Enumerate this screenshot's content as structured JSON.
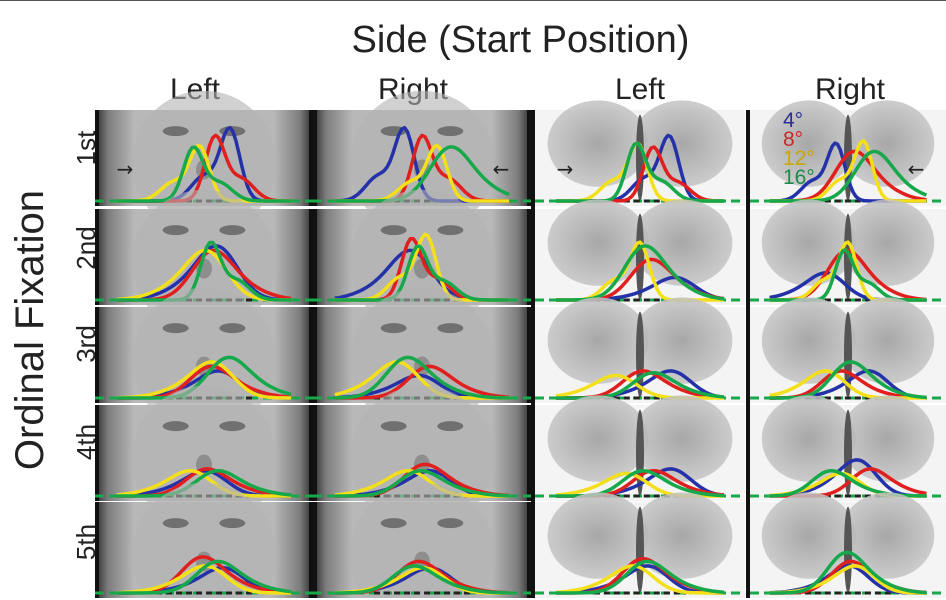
{
  "figure": {
    "super_title": "Side (Start Position)",
    "column_titles": [
      "Left",
      "Right",
      "Left",
      "Right"
    ],
    "row_axis_title": "Ordinal Fixation",
    "row_labels": [
      "1st",
      "2nd",
      "3rd",
      "4th",
      "5th"
    ],
    "stimuli": [
      "face",
      "face",
      "butterfly",
      "butterfly"
    ],
    "start_arrows": [
      "→",
      "←",
      "→",
      "←"
    ],
    "legend": [
      {
        "label": "4°",
        "color": "#2b2f93"
      },
      {
        "label": "8°",
        "color": "#c8282a"
      },
      {
        "label": "12°",
        "color": "#c9a800"
      },
      {
        "label": "16°",
        "color": "#1f8a4c"
      }
    ]
  },
  "chart_data": {
    "type": "line",
    "title": "",
    "x_axis": "horizontal position across stimulus",
    "series_names": [
      "4°",
      "8°",
      "12°",
      "16°"
    ],
    "colors": {
      "4°": "#2431a8",
      "8°": "#e0201f",
      "12°": "#f3e01b",
      "16°": "#16a84a"
    },
    "panels": [
      {
        "row": "1st",
        "column": "Left",
        "stimulus": "face",
        "peaks": {
          "4°": [
            0.62,
            0.95
          ],
          "8°": [
            0.55,
            0.85
          ],
          "12°": [
            0.48,
            0.72
          ],
          "16°": [
            0.45,
            0.7
          ]
        }
      },
      {
        "row": "1st",
        "column": "Right",
        "stimulus": "face",
        "peaks": {
          "4°": [
            0.42,
            0.95
          ],
          "8°": [
            0.5,
            0.85
          ],
          "12°": [
            0.57,
            0.72
          ],
          "16°": [
            0.62,
            0.6
          ]
        }
      },
      {
        "row": "1st",
        "column": "Left",
        "stimulus": "butterfly",
        "peaks": {
          "4°": [
            0.64,
            0.85
          ],
          "8°": [
            0.56,
            0.7
          ],
          "12°": [
            0.49,
            0.75
          ],
          "16°": [
            0.48,
            0.75
          ]
        }
      },
      {
        "row": "1st",
        "column": "Right",
        "stimulus": "butterfly",
        "peaks": {
          "4°": [
            0.44,
            0.75
          ],
          "8°": [
            0.52,
            0.55
          ],
          "12°": [
            0.58,
            0.78
          ],
          "16°": [
            0.62,
            0.55
          ]
        }
      },
      {
        "row": "2nd",
        "column": "Left",
        "stimulus": "face",
        "peaks": {
          "4°": [
            0.57,
            0.6
          ],
          "8°": [
            0.53,
            0.55
          ],
          "12°": [
            0.52,
            0.55
          ],
          "16°": [
            0.53,
            0.75
          ]
        }
      },
      {
        "row": "2nd",
        "column": "Right",
        "stimulus": "face",
        "peaks": {
          "4°": [
            0.46,
            0.55
          ],
          "8°": [
            0.45,
            0.8
          ],
          "12°": [
            0.52,
            0.85
          ],
          "16°": [
            0.48,
            0.7
          ]
        }
      },
      {
        "row": "2nd",
        "column": "Left",
        "stimulus": "butterfly",
        "peaks": {
          "4°": [
            0.68,
            0.25
          ],
          "8°": [
            0.54,
            0.45
          ],
          "12°": [
            0.5,
            0.75
          ],
          "16°": [
            0.51,
            0.6
          ]
        }
      },
      {
        "row": "2nd",
        "column": "Right",
        "stimulus": "butterfly",
        "peaks": {
          "4°": [
            0.4,
            0.3
          ],
          "8°": [
            0.48,
            0.55
          ],
          "12°": [
            0.5,
            0.75
          ],
          "16°": [
            0.48,
            0.65
          ]
        }
      },
      {
        "row": "3rd",
        "column": "Left",
        "stimulus": "face",
        "peaks": {
          "4°": [
            0.58,
            0.3
          ],
          "8°": [
            0.52,
            0.35
          ],
          "12°": [
            0.55,
            0.4
          ],
          "16°": [
            0.6,
            0.45
          ]
        }
      },
      {
        "row": "3rd",
        "column": "Right",
        "stimulus": "face",
        "peaks": {
          "4°": [
            0.5,
            0.25
          ],
          "8°": [
            0.52,
            0.35
          ],
          "12°": [
            0.4,
            0.4
          ],
          "16°": [
            0.42,
            0.45
          ]
        }
      },
      {
        "row": "3rd",
        "column": "Left",
        "stimulus": "butterfly",
        "peaks": {
          "4°": [
            0.66,
            0.3
          ],
          "8°": [
            0.5,
            0.3
          ],
          "12°": [
            0.4,
            0.25
          ],
          "16°": [
            0.55,
            0.28
          ]
        }
      },
      {
        "row": "3rd",
        "column": "Right",
        "stimulus": "butterfly",
        "peaks": {
          "4°": [
            0.62,
            0.3
          ],
          "8°": [
            0.45,
            0.3
          ],
          "12°": [
            0.4,
            0.3
          ],
          "16°": [
            0.5,
            0.4
          ]
        }
      },
      {
        "row": "4th",
        "column": "Left",
        "stimulus": "face",
        "peaks": {
          "4°": [
            0.52,
            0.28
          ],
          "8°": [
            0.5,
            0.3
          ],
          "12°": [
            0.45,
            0.28
          ],
          "16°": [
            0.55,
            0.28
          ]
        }
      },
      {
        "row": "4th",
        "column": "Right",
        "stimulus": "face",
        "peaks": {
          "4°": [
            0.55,
            0.28
          ],
          "8°": [
            0.5,
            0.35
          ],
          "12°": [
            0.45,
            0.28
          ],
          "16°": [
            0.48,
            0.28
          ]
        }
      },
      {
        "row": "4th",
        "column": "Left",
        "stimulus": "butterfly",
        "peaks": {
          "4°": [
            0.66,
            0.3
          ],
          "8°": [
            0.55,
            0.28
          ],
          "12°": [
            0.45,
            0.25
          ],
          "16°": [
            0.5,
            0.28
          ]
        }
      },
      {
        "row": "4th",
        "column": "Right",
        "stimulus": "butterfly",
        "peaks": {
          "4°": [
            0.56,
            0.4
          ],
          "8°": [
            0.6,
            0.3
          ],
          "12°": [
            0.48,
            0.25
          ],
          "16°": [
            0.4,
            0.28
          ]
        }
      },
      {
        "row": "5th",
        "column": "Left",
        "stimulus": "face",
        "peaks": {
          "4°": [
            0.6,
            0.28
          ],
          "8°": [
            0.48,
            0.4
          ],
          "12°": [
            0.52,
            0.3
          ],
          "16°": [
            0.55,
            0.35
          ]
        }
      },
      {
        "row": "5th",
        "column": "Right",
        "stimulus": "face",
        "peaks": {
          "4°": [
            0.55,
            0.28
          ],
          "8°": [
            0.47,
            0.35
          ],
          "12°": [
            0.52,
            0.28
          ],
          "16°": [
            0.45,
            0.3
          ]
        }
      },
      {
        "row": "5th",
        "column": "Left",
        "stimulus": "butterfly",
        "peaks": {
          "4°": [
            0.55,
            0.3
          ],
          "8°": [
            0.5,
            0.38
          ],
          "12°": [
            0.48,
            0.3
          ],
          "16°": [
            0.52,
            0.35
          ]
        }
      },
      {
        "row": "5th",
        "column": "Right",
        "stimulus": "butterfly",
        "peaks": {
          "4°": [
            0.52,
            0.3
          ],
          "8°": [
            0.5,
            0.35
          ],
          "12°": [
            0.55,
            0.3
          ],
          "16°": [
            0.48,
            0.45
          ]
        }
      }
    ],
    "grid": false
  }
}
